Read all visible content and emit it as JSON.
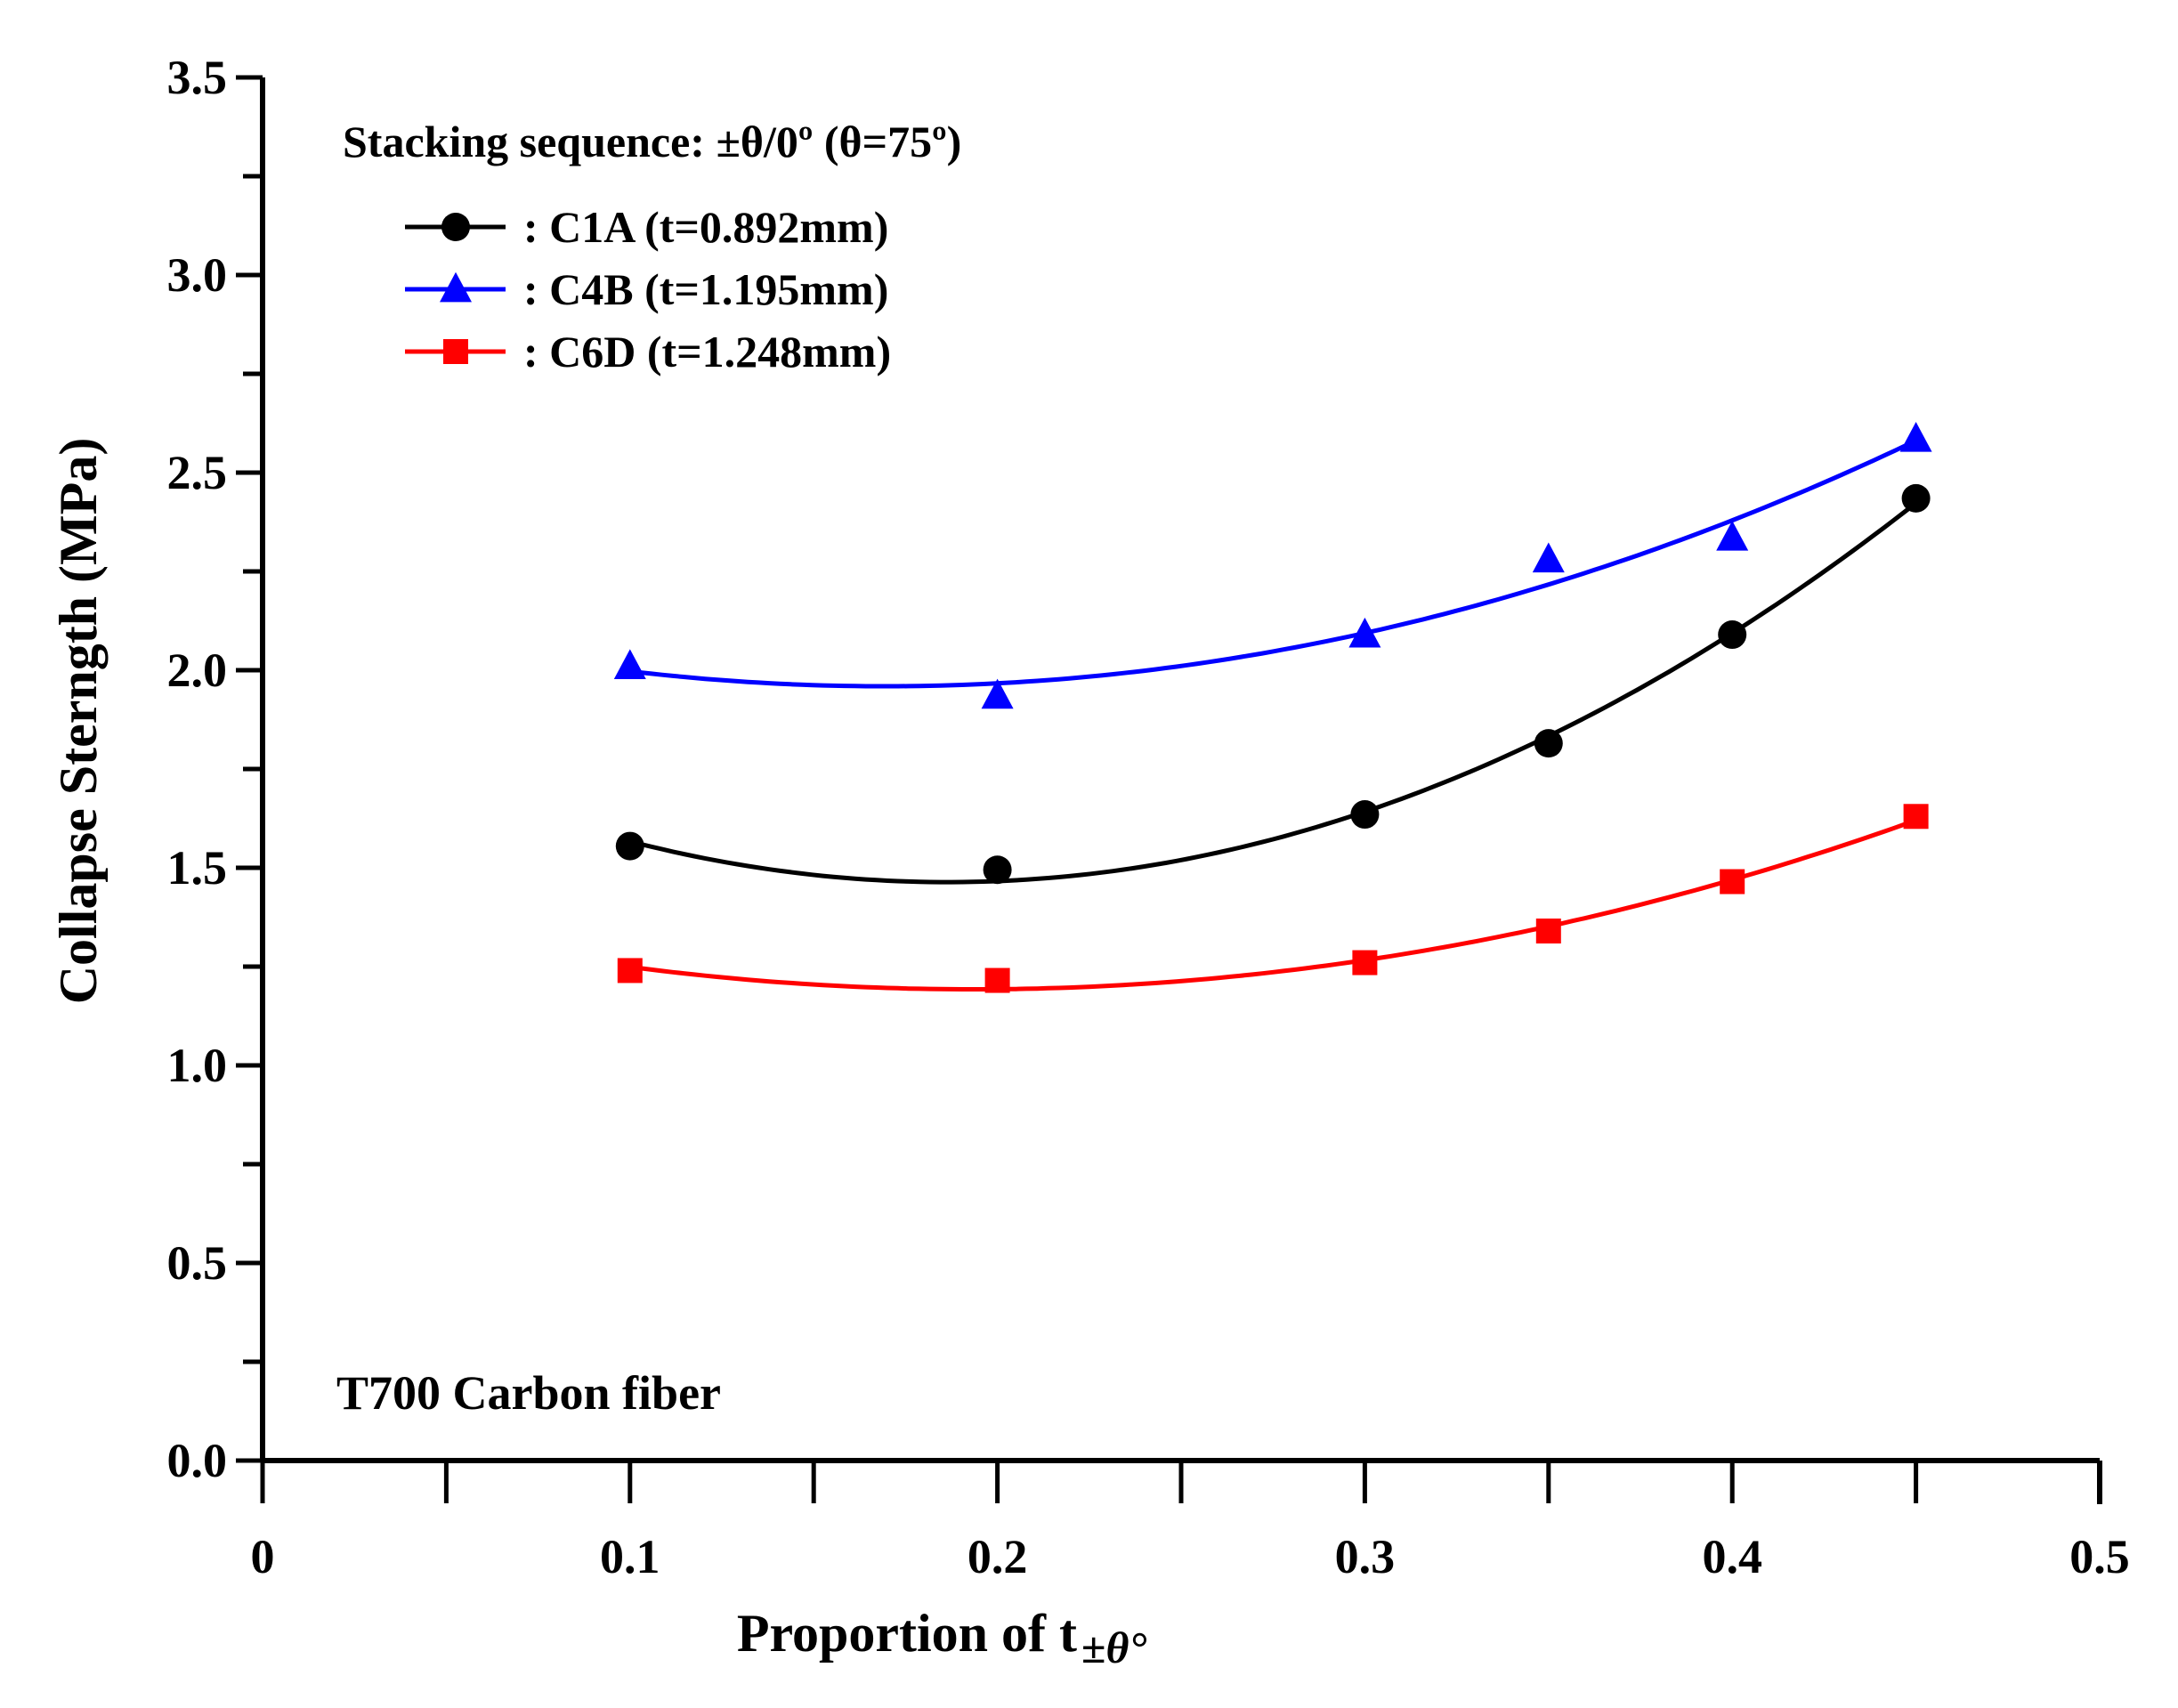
{
  "chart_data": {
    "type": "line",
    "title": "",
    "xlabel_main": "Proportion of t",
    "xlabel_subscript": "±θ°",
    "ylabel": "Collapse Sterngth (MPa)",
    "xlim": [
      0,
      0.5
    ],
    "ylim": [
      0,
      3.5
    ],
    "x_ticks": [
      "0",
      "0.1",
      "0.2",
      "0.3",
      "0.4",
      "0.5"
    ],
    "y_ticks": [
      "0.0",
      "0.5",
      "1.0",
      "1.5",
      "2.0",
      "2.5",
      "3.0",
      "3.5"
    ],
    "grid": false,
    "legend_heading": "Stacking sequence: ±θ/0º (θ=75º)",
    "annotation": "T700 Carbon fiber",
    "series": [
      {
        "name": ": C1A (t=0.892mm)",
        "color": "#000000",
        "marker": "circle",
        "x": [
          0.1,
          0.2,
          0.3,
          0.35,
          0.4,
          0.45
        ],
        "y": [
          1.555,
          1.495,
          1.635,
          1.815,
          2.09,
          2.435
        ]
      },
      {
        "name": ": C4B (t=1.195mm)",
        "color": "#0000ff",
        "marker": "triangle",
        "x": [
          0.1,
          0.2,
          0.3,
          0.35,
          0.4,
          0.45
        ],
        "y": [
          2.01,
          1.935,
          2.09,
          2.28,
          2.335,
          2.585
        ]
      },
      {
        "name": ": C6D (t=1.248mm)",
        "color": "#ff0000",
        "marker": "square",
        "x": [
          0.1,
          0.2,
          0.3,
          0.35,
          0.4,
          0.45
        ],
        "y": [
          1.24,
          1.215,
          1.26,
          1.34,
          1.465,
          1.63
        ]
      }
    ]
  }
}
